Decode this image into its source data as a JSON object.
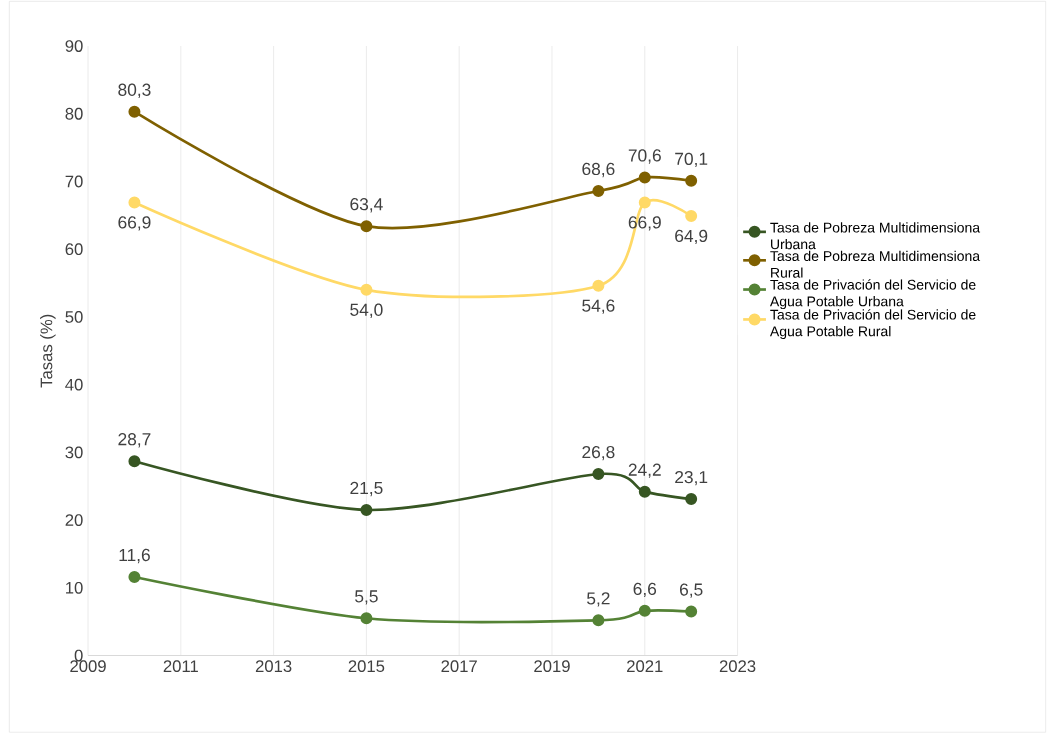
{
  "chart_data": {
    "type": "line",
    "ylabel": "Tasas (%)",
    "x": [
      2010,
      2015,
      2020,
      2021,
      2022
    ],
    "xlim": [
      2009,
      2023
    ],
    "xticks": [
      2009,
      2011,
      2013,
      2015,
      2017,
      2019,
      2021,
      2023
    ],
    "ylim": [
      0,
      90
    ],
    "yticks": [
      0,
      10,
      20,
      30,
      40,
      50,
      60,
      70,
      80,
      90
    ],
    "grid": "x",
    "legend": "right",
    "marker": "circle",
    "line_style": "solid",
    "series": [
      {
        "name": "Tasa de Pobreza Multidimensiona Urbana",
        "color": "#375623",
        "values": [
          28.7,
          21.5,
          26.8,
          24.2,
          23.1
        ],
        "value_labels": [
          "28,7",
          "21,5",
          "26,8",
          "24,2",
          "23,1"
        ]
      },
      {
        "name": "Tasa de Pobreza Multidimensiona Rural",
        "color": "#7f6000",
        "values": [
          80.3,
          63.4,
          68.6,
          70.6,
          70.1
        ],
        "value_labels": [
          "80,3",
          "63,4",
          "68,6",
          "70,6",
          "70,1"
        ]
      },
      {
        "name": "Tasa de Privación del Servicio de Agua Potable Urbana",
        "color": "#548235",
        "values": [
          11.6,
          5.5,
          5.2,
          6.6,
          6.5
        ],
        "value_labels": [
          "11,6",
          "5,5",
          "5,2",
          "6,6",
          "6,5"
        ]
      },
      {
        "name": "Tasa de Privación del Servicio de Agua Potable Rural",
        "color": "#ffd966",
        "values": [
          66.9,
          54.0,
          54.6,
          66.9,
          64.9
        ],
        "value_labels": [
          "66,9",
          "54,0",
          "54,6",
          "66,9",
          "64,9"
        ]
      }
    ]
  }
}
